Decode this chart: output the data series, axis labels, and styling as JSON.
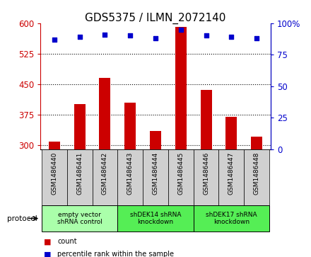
{
  "title": "GDS5375 / ILMN_2072140",
  "samples": [
    "GSM1486440",
    "GSM1486441",
    "GSM1486442",
    "GSM1486443",
    "GSM1486444",
    "GSM1486445",
    "GSM1486446",
    "GSM1486447",
    "GSM1486448"
  ],
  "counts": [
    308,
    400,
    465,
    405,
    335,
    590,
    435,
    370,
    320
  ],
  "percentiles": [
    87,
    89,
    91,
    90,
    88,
    95,
    90,
    89,
    88
  ],
  "ylim_left": [
    290,
    600
  ],
  "ylim_right": [
    0,
    100
  ],
  "yticks_left": [
    300,
    375,
    450,
    525,
    600
  ],
  "yticks_right": [
    0,
    25,
    50,
    75,
    100
  ],
  "bar_color": "#cc0000",
  "dot_color": "#0000cc",
  "groups": [
    {
      "label": "empty vector\nshRNA control",
      "start": 0,
      "end": 3,
      "color": "#aaffaa"
    },
    {
      "label": "shDEK14 shRNA\nknockdown",
      "start": 3,
      "end": 6,
      "color": "#55ee55"
    },
    {
      "label": "shDEK17 shRNA\nknockdown",
      "start": 6,
      "end": 9,
      "color": "#55ee55"
    }
  ],
  "protocol_label": "protocol",
  "legend_count_label": "count",
  "legend_pct_label": "percentile rank within the sample",
  "title_fontsize": 11,
  "tick_fontsize": 8.5,
  "bar_width": 0.45,
  "xlim": [
    -0.55,
    8.55
  ]
}
